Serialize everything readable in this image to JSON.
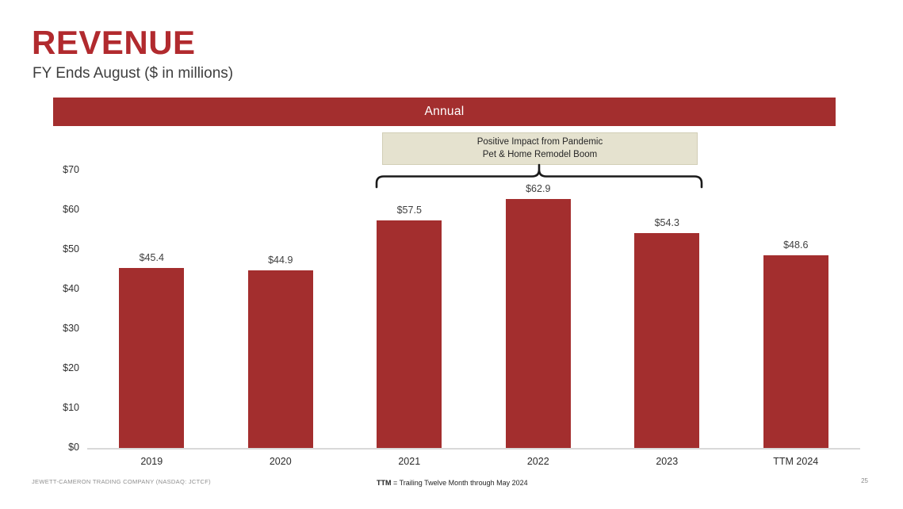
{
  "slide": {
    "title": "REVENUE",
    "subtitle": "FY Ends August ($ in millions)",
    "banner_label": "Annual",
    "annotation": {
      "line1": "Positive Impact from Pandemic",
      "line2": "Pet & Home Remodel Boom"
    },
    "footer": {
      "left": "JEWETT-CAMERON TRADING COMPANY (NASDAQ: JCTCF)",
      "note_bold": "TTM",
      "note_rest": " = Trailing Twelve Month through May 2024",
      "page_number": "25"
    }
  },
  "colors": {
    "accent_red": "#A32E2E",
    "title_red": "#B12A2E",
    "annotation_bg": "#E5E2CF",
    "axis_line": "#D9D9D9"
  },
  "chart_data": {
    "type": "bar",
    "title": "Annual",
    "subtitle": "FY Ends August ($ in millions)",
    "categories": [
      "2019",
      "2020",
      "2021",
      "2022",
      "2023",
      "TTM 2024"
    ],
    "values": [
      45.4,
      44.9,
      57.5,
      62.9,
      54.3,
      48.6
    ],
    "value_labels": [
      "$45.4",
      "$44.9",
      "$57.5",
      "$62.9",
      "$54.3",
      "$48.6"
    ],
    "y_ticks": [
      "$70",
      "$60",
      "$50",
      "$40",
      "$30",
      "$20",
      "$10",
      "$0"
    ],
    "ylim": [
      0,
      70
    ],
    "xlabel": "",
    "ylabel": "",
    "grid": false,
    "legend_position": "none",
    "bar_color": "#A32E2E",
    "annotation_text": "Positive Impact from Pandemic Pet & Home Remodel Boom",
    "annotation_span_categories": [
      "2021",
      "2022",
      "2023"
    ]
  }
}
